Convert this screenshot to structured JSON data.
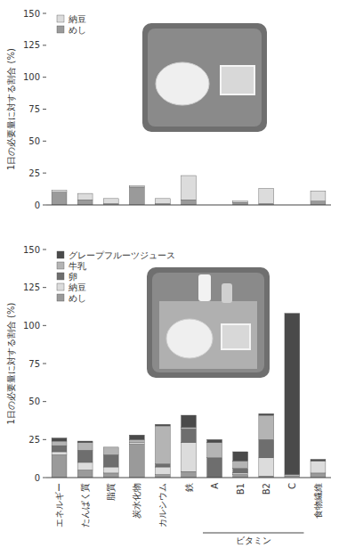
{
  "chart_data": [
    {
      "type": "bar",
      "stacked": true,
      "grid": false,
      "legend": "top-left",
      "tick_labels": "y",
      "ylabel": "1日の必要量に対する割合 (%)",
      "categories": [
        "エネルギー",
        "たんぱく質",
        "脂質",
        "炭水化物",
        "カルシウム",
        "鉄",
        "A",
        "B1",
        "B2",
        "C",
        "食物繊維"
      ],
      "ylim": [
        0,
        150
      ],
      "yticks": [
        0,
        25,
        50,
        75,
        100,
        125,
        150
      ],
      "series": [
        {
          "name": "納豆",
          "color": "#dcdcdc",
          "values": [
            1.5,
            5,
            4,
            1,
            4,
            19,
            0,
            1,
            12,
            0,
            8
          ]
        },
        {
          "name": "めし",
          "color": "#9a9a9a",
          "values": [
            10,
            4,
            1,
            14,
            1,
            4,
            0,
            2,
            1,
            0,
            3
          ]
        }
      ]
    },
    {
      "type": "bar",
      "stacked": true,
      "grid": false,
      "legend": "top-left",
      "tick_labels": true,
      "ylabel": "1日の必要量に対する割合 (%)",
      "categories": [
        "エネルギー",
        "たんぱく質",
        "脂質",
        "炭水化物",
        "カルシウム",
        "鉄",
        "A",
        "B1",
        "B2",
        "C",
        "食物繊維"
      ],
      "category_group": {
        "label": "ビタミン",
        "categories": [
          "A",
          "B1",
          "B2",
          "C"
        ]
      },
      "ylim": [
        0,
        150
      ],
      "yticks": [
        0,
        25,
        50,
        75,
        100,
        125,
        150
      ],
      "series": [
        {
          "name": "グレープフルーツジュース",
          "color": "#4a4a4a",
          "values": [
            2,
            1,
            0,
            3,
            1,
            8,
            2,
            6,
            1,
            106,
            1
          ]
        },
        {
          "name": "牛乳",
          "color": "#b4b4b4",
          "values": [
            3,
            5,
            5,
            2,
            25,
            1,
            10,
            5,
            16,
            1,
            0
          ]
        },
        {
          "name": "卵",
          "color": "#6e6e6e",
          "values": [
            4,
            8,
            8,
            0,
            2,
            9,
            13,
            3,
            12,
            0,
            0
          ]
        },
        {
          "name": "納豆",
          "color": "#dcdcdc",
          "values": [
            2,
            5,
            4,
            1,
            5,
            19,
            0,
            1,
            12,
            1,
            8
          ]
        },
        {
          "name": "めし",
          "color": "#9a9a9a",
          "values": [
            15,
            5,
            3,
            22,
            2,
            4,
            0,
            2,
            1,
            0,
            3
          ]
        }
      ]
    }
  ]
}
